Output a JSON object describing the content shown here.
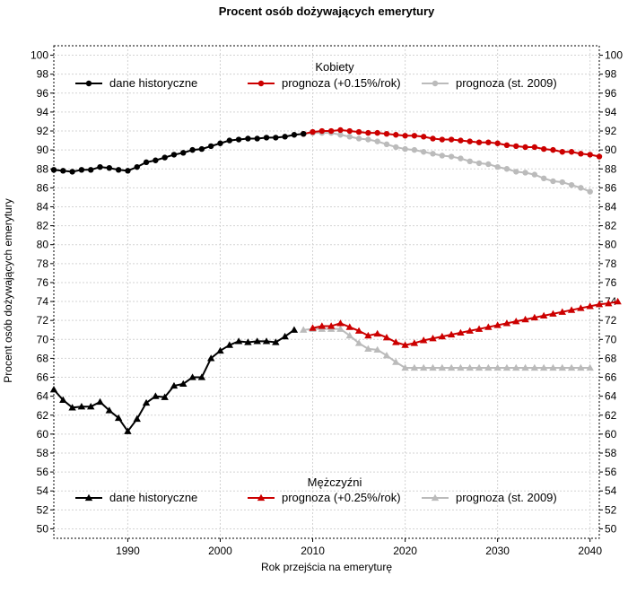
{
  "chart_data": {
    "type": "line",
    "title": "Procent osób dożywających emerytury",
    "xlabel": "Rok przejścia na emeryturę",
    "ylabel": "Procent osób dożywających emerytury",
    "xlim": [
      1982,
      2041
    ],
    "ylim": [
      49,
      101
    ],
    "xticks": [
      1990,
      2000,
      2010,
      2020,
      2030,
      2040
    ],
    "yticks": [
      50,
      52,
      54,
      56,
      58,
      60,
      62,
      64,
      66,
      68,
      70,
      72,
      74,
      76,
      78,
      80,
      82,
      84,
      86,
      88,
      90,
      92,
      94,
      96,
      98,
      100
    ],
    "grid": true,
    "legends": [
      {
        "title": "Kobiety",
        "placement": "top",
        "entries": [
          {
            "label": "dane historyczne",
            "color": "#000000",
            "marker": "circle"
          },
          {
            "label": "prognoza (+0.15%/rok)",
            "color": "#cc0000",
            "marker": "circle"
          },
          {
            "label": "prognoza (st. 2009)",
            "color": "#bbbbbb",
            "marker": "circle"
          }
        ]
      },
      {
        "title": "Mężczyźni",
        "placement": "bottom",
        "entries": [
          {
            "label": "dane historyczne",
            "color": "#000000",
            "marker": "triangle"
          },
          {
            "label": "prognoza (+0.25%/rok)",
            "color": "#cc0000",
            "marker": "triangle"
          },
          {
            "label": "prognoza (st. 2009)",
            "color": "#bbbbbb",
            "marker": "triangle"
          }
        ]
      }
    ],
    "series": [
      {
        "group": "Kobiety",
        "marker": "circle",
        "color": "#bbbbbb",
        "x_start": 2009,
        "values": [
          91.7,
          91.8,
          91.8,
          91.8,
          91.6,
          91.4,
          91.2,
          91.1,
          90.9,
          90.6,
          90.3,
          90.1,
          90.0,
          89.8,
          89.6,
          89.4,
          89.3,
          89.1,
          88.8,
          88.6,
          88.5,
          88.2,
          88.0,
          87.7,
          87.6,
          87.4,
          87.0,
          86.7,
          86.6,
          86.3,
          86.0,
          85.6
        ]
      },
      {
        "group": "Kobiety",
        "marker": "circle",
        "color": "#cc0000",
        "x_start": 2009,
        "values": [
          91.7,
          91.9,
          92.0,
          92.0,
          92.1,
          92.0,
          91.9,
          91.8,
          91.8,
          91.7,
          91.6,
          91.5,
          91.5,
          91.4,
          91.2,
          91.1,
          91.1,
          91.0,
          90.9,
          90.8,
          90.8,
          90.7,
          90.5,
          90.4,
          90.3,
          90.3,
          90.1,
          90.0,
          89.8,
          89.8,
          89.6,
          89.5,
          89.3
        ]
      },
      {
        "group": "Kobiety",
        "marker": "circle",
        "color": "#000000",
        "x_start": 1982,
        "values": [
          87.9,
          87.8,
          87.7,
          87.9,
          87.9,
          88.2,
          88.1,
          87.9,
          87.8,
          88.2,
          88.7,
          88.9,
          89.2,
          89.5,
          89.7,
          90.0,
          90.1,
          90.4,
          90.7,
          91.0,
          91.1,
          91.2,
          91.2,
          91.3,
          91.3,
          91.4,
          91.6,
          91.7
        ]
      },
      {
        "group": "Mężczyźni",
        "marker": "triangle",
        "color": "#bbbbbb",
        "x_start": 2009,
        "values": [
          71.0,
          71.1,
          71.1,
          71.1,
          71.1,
          70.4,
          69.6,
          69.0,
          68.9,
          68.3,
          67.6,
          67.0,
          67.0,
          67.0,
          67.0,
          67.0,
          67.0,
          67.0,
          67.0,
          67.0,
          67.0,
          67.0,
          67.0,
          67.0,
          67.0,
          67.0,
          67.0,
          67.0,
          67.0,
          67.0,
          67.0,
          67.0
        ]
      },
      {
        "group": "Mężczyźni",
        "marker": "triangle",
        "color": "#cc0000",
        "x_start": 2010,
        "values": [
          71.2,
          71.4,
          71.4,
          71.7,
          71.3,
          70.9,
          70.4,
          70.6,
          70.2,
          69.7,
          69.4,
          69.6,
          69.9,
          70.1,
          70.3,
          70.5,
          70.7,
          70.9,
          71.1,
          71.3,
          71.5,
          71.7,
          71.9,
          72.1,
          72.3,
          72.5,
          72.7,
          72.9,
          73.1,
          73.3,
          73.5,
          73.7,
          73.8,
          74.0
        ]
      },
      {
        "group": "Mężczyźni",
        "marker": "triangle",
        "color": "#000000",
        "x_start": 1982,
        "values": [
          64.7,
          63.6,
          62.8,
          62.9,
          62.9,
          63.4,
          62.5,
          61.7,
          60.3,
          61.6,
          63.3,
          64.0,
          63.9,
          65.1,
          65.3,
          66.0,
          66.0,
          68.0,
          68.8,
          69.4,
          69.8,
          69.7,
          69.8,
          69.8,
          69.7,
          70.3,
          71.0
        ]
      }
    ]
  }
}
